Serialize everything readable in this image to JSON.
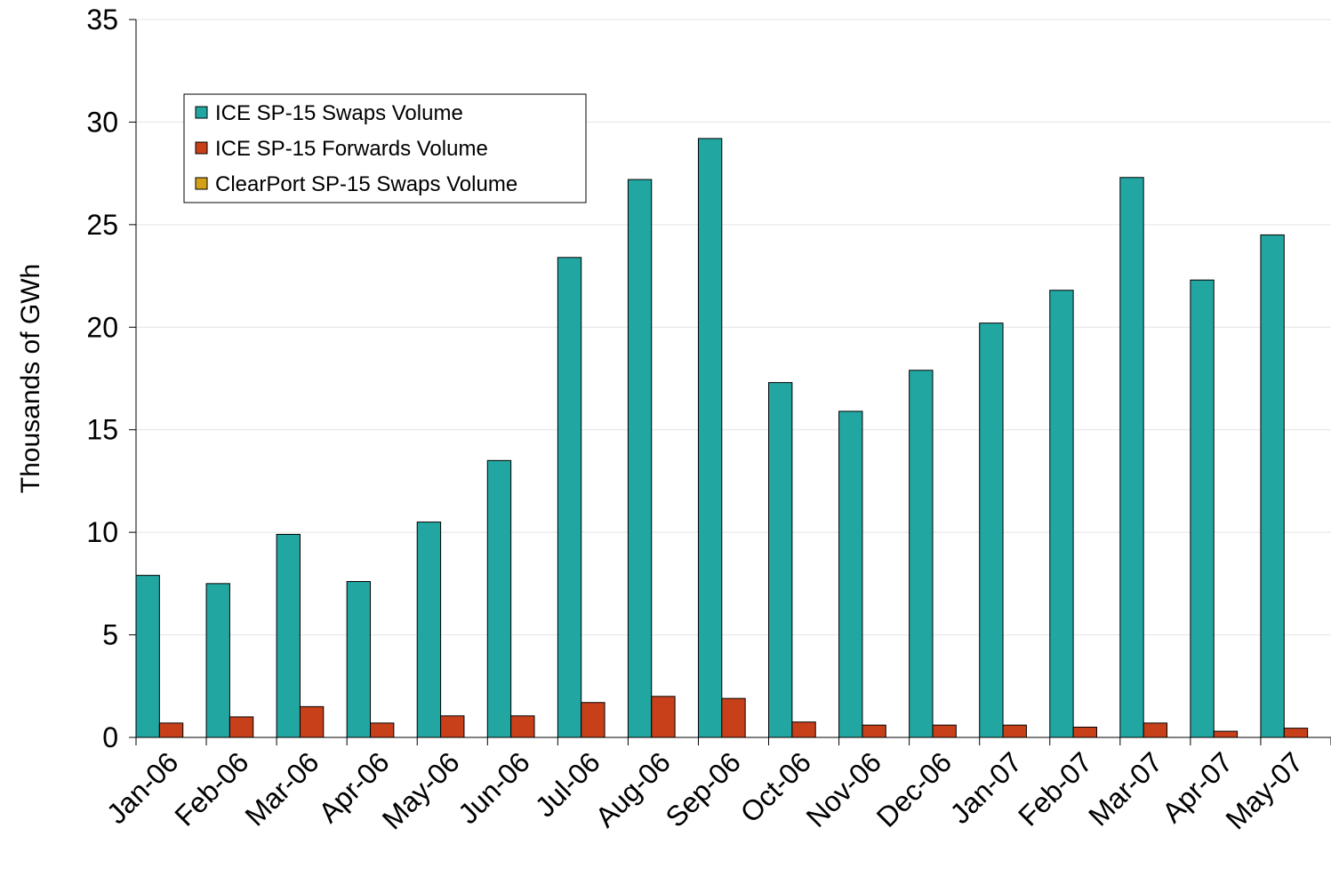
{
  "chart_data": {
    "type": "bar",
    "y_label": "Thousands of GWh",
    "categories": [
      "Jan-06",
      "Feb-06",
      "Mar-06",
      "Apr-06",
      "May-06",
      "Jun-06",
      "Jul-06",
      "Aug-06",
      "Sep-06",
      "Oct-06",
      "Nov-06",
      "Dec-06",
      "Jan-07",
      "Feb-07",
      "Mar-07",
      "Apr-07",
      "May-07"
    ],
    "series": [
      {
        "name": "ICE SP-15 Swaps Volume",
        "color": "#22a6a2",
        "values": [
          7.9,
          7.5,
          9.9,
          7.6,
          10.5,
          13.5,
          23.4,
          27.2,
          29.2,
          17.3,
          15.9,
          17.9,
          20.2,
          21.8,
          27.3,
          22.3,
          24.5
        ]
      },
      {
        "name": "ICE SP-15 Forwards Volume",
        "color": "#c8401a",
        "values": [
          0.7,
          1.0,
          1.5,
          0.7,
          1.05,
          1.05,
          1.7,
          2.0,
          1.9,
          0.75,
          0.6,
          0.6,
          0.6,
          0.5,
          0.7,
          0.3,
          0.45
        ]
      },
      {
        "name": "ClearPort SP-15 Swaps Volume",
        "color": "#d4a017",
        "values": [
          0,
          0,
          0,
          0,
          0,
          0,
          0,
          0,
          0,
          0,
          0,
          0,
          0,
          0,
          0,
          0,
          0
        ]
      }
    ],
    "ylim": [
      0,
      35
    ],
    "yticks": [
      0,
      5,
      10,
      15,
      20,
      25,
      30,
      35
    ],
    "grid": true,
    "legend": "top-left"
  }
}
